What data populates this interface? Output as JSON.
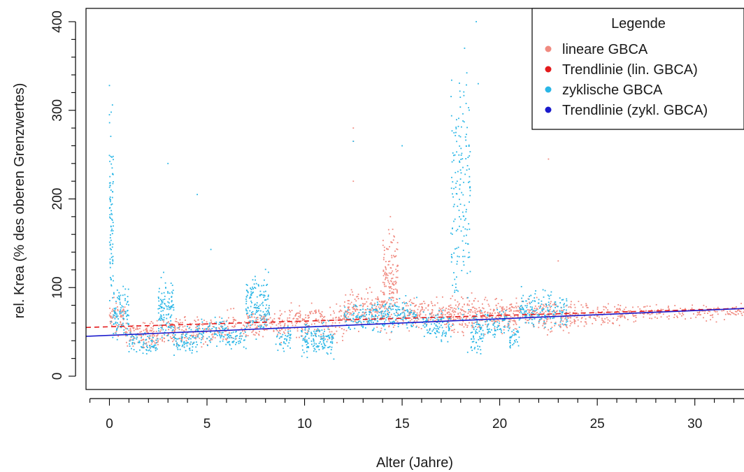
{
  "chart_data": {
    "type": "scatter",
    "xlabel": "Alter (Jahre)",
    "ylabel": "rel. Krea (% des oberen Grenzwertes)",
    "xlim": [
      -1.2,
      33.2
    ],
    "ylim": [
      -15,
      415
    ],
    "x_ticks": [
      0,
      5,
      10,
      15,
      20,
      25,
      30
    ],
    "y_ticks": [
      0,
      100,
      200,
      300,
      400
    ],
    "grid": false,
    "legend": {
      "title": "Legende",
      "placement": "top-right",
      "entries": [
        {
          "label": "lineare GBCA",
          "color": "#F08A80"
        },
        {
          "label": "Trendlinie (lin. GBCA)",
          "color": "#E31A1C"
        },
        {
          "label": "zyklische GBCA",
          "color": "#29B6E6"
        },
        {
          "label": "Trendlinie (zykl. GBCA)",
          "color": "#1A1ACC"
        }
      ]
    },
    "series": [
      {
        "name": "lineare GBCA",
        "kind": "points",
        "color": "#F08A80",
        "clusters": [
          {
            "x": [
              0.0,
              0.8
            ],
            "y": [
              40,
              95
            ]
          },
          {
            "x": [
              0.8,
              3.0
            ],
            "y": [
              25,
              70
            ]
          },
          {
            "x": [
              3.0,
              6.0
            ],
            "y": [
              30,
              75
            ]
          },
          {
            "x": [
              6.0,
              9.0
            ],
            "y": [
              35,
              80
            ]
          },
          {
            "x": [
              9.0,
              12.0
            ],
            "y": [
              35,
              90
            ]
          },
          {
            "x": [
              12.0,
              14.0
            ],
            "y": [
              45,
              105
            ]
          },
          {
            "x": [
              14.0,
              14.8
            ],
            "y": [
              30,
              180
            ]
          },
          {
            "x": [
              15.0,
              17.5
            ],
            "y": [
              45,
              95
            ]
          },
          {
            "x": [
              17.5,
              19.5
            ],
            "y": [
              40,
              100
            ]
          },
          {
            "x": [
              19.5,
              22.0
            ],
            "y": [
              45,
              95
            ]
          },
          {
            "x": [
              22.0,
              24.5
            ],
            "y": [
              45,
              90
            ]
          },
          {
            "x": [
              24.5,
              27.0
            ],
            "y": [
              55,
              85
            ]
          },
          {
            "x": [
              27.0,
              33.0
            ],
            "y": [
              60,
              85
            ]
          }
        ],
        "outliers": [
          [
            12.5,
            280
          ],
          [
            12.5,
            265
          ],
          [
            12.5,
            220
          ],
          [
            14.4,
            180
          ],
          [
            22.5,
            245
          ],
          [
            23.0,
            130
          ]
        ]
      },
      {
        "name": "zyklische GBCA",
        "kind": "points",
        "color": "#29B6E6",
        "clusters": [
          {
            "x": [
              0.0,
              0.2
            ],
            "y": [
              25,
              330
            ]
          },
          {
            "x": [
              0.2,
              1.0
            ],
            "y": [
              30,
              110
            ]
          },
          {
            "x": [
              1.0,
              2.5
            ],
            "y": [
              20,
              55
            ]
          },
          {
            "x": [
              2.5,
              3.3
            ],
            "y": [
              25,
              130
            ]
          },
          {
            "x": [
              3.3,
              4.5
            ],
            "y": [
              15,
              60
            ]
          },
          {
            "x": [
              4.5,
              6.0
            ],
            "y": [
              30,
              70
            ]
          },
          {
            "x": [
              6.0,
              7.0
            ],
            "y": [
              25,
              60
            ]
          },
          {
            "x": [
              7.0,
              8.2
            ],
            "y": [
              35,
              125
            ]
          },
          {
            "x": [
              8.5,
              9.3
            ],
            "y": [
              25,
              60
            ]
          },
          {
            "x": [
              9.8,
              11.5
            ],
            "y": [
              12,
              70
            ]
          },
          {
            "x": [
              12.0,
              13.5
            ],
            "y": [
              45,
              85
            ]
          },
          {
            "x": [
              13.5,
              15.8
            ],
            "y": [
              45,
              95
            ]
          },
          {
            "x": [
              16.0,
              17.5
            ],
            "y": [
              35,
              80
            ]
          },
          {
            "x": [
              17.5,
              18.5
            ],
            "y": [
              10,
              380
            ]
          },
          {
            "x": [
              18.5,
              19.2
            ],
            "y": [
              15,
              80
            ]
          },
          {
            "x": [
              19.2,
              20.5
            ],
            "y": [
              40,
              80
            ]
          },
          {
            "x": [
              20.5,
              21.0
            ],
            "y": [
              25,
              60
            ]
          },
          {
            "x": [
              21.0,
              23.5
            ],
            "y": [
              45,
              105
            ]
          }
        ],
        "outliers": [
          [
            0.0,
            328
          ],
          [
            0.0,
            295
          ],
          [
            3.0,
            240
          ],
          [
            4.5,
            205
          ],
          [
            5.2,
            143
          ],
          [
            18.8,
            400
          ],
          [
            18.9,
            330
          ],
          [
            18.2,
            370
          ],
          [
            15.0,
            260
          ],
          [
            12.5,
            265
          ]
        ]
      },
      {
        "name": "Trendlinie (lin. GBCA)",
        "kind": "line",
        "dashed": true,
        "color": "#E31A1C",
        "x": [
          -1.2,
          33.2
        ],
        "y": [
          55,
          77
        ]
      },
      {
        "name": "Trendlinie (zykl. GBCA)",
        "kind": "line",
        "dashed": false,
        "color": "#1A1ACC",
        "x": [
          -1.2,
          33.2
        ],
        "y": [
          45,
          77
        ]
      }
    ]
  }
}
